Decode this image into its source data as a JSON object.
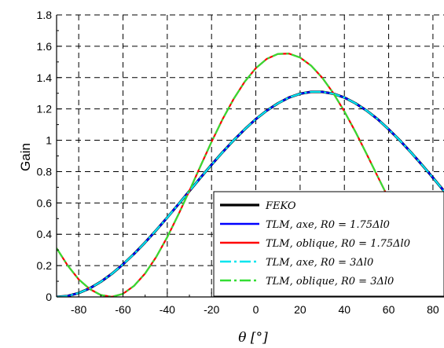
{
  "chart_data": {
    "type": "line",
    "xlabel": "θ  [°]",
    "ylabel": "Gain",
    "xlim": [
      -90,
      85
    ],
    "ylim": [
      0,
      1.8
    ],
    "grid": true,
    "legend_position": "bottom-right",
    "x_ticks": [
      "-80",
      "-60",
      "-40",
      "-20",
      "0",
      "20",
      "40",
      "60",
      "80"
    ],
    "y_ticks": [
      "0",
      "0.2",
      "0.4",
      "0.6",
      "0.8",
      "1",
      "1.2",
      "1.4",
      "1.6",
      "1.8"
    ],
    "x": [
      -90,
      -85,
      -80,
      -75,
      -70,
      -65,
      -60,
      -55,
      -50,
      -45,
      -40,
      -35,
      -30,
      -25,
      -20,
      -15,
      -10,
      -5,
      0,
      5,
      10,
      15,
      20,
      25,
      30,
      35,
      40,
      45,
      50,
      55,
      60,
      65,
      70,
      75,
      80,
      85
    ],
    "series": [
      {
        "name": "FEKO",
        "color": "#000000",
        "style": "solid",
        "values": [
          0.0,
          0.006,
          0.025,
          0.055,
          0.097,
          0.148,
          0.208,
          0.275,
          0.348,
          0.426,
          0.507,
          0.591,
          0.676,
          0.761,
          0.844,
          0.924,
          1.0,
          1.07,
          1.135,
          1.19,
          1.236,
          1.273,
          1.297,
          1.309,
          1.309,
          1.297,
          1.273,
          1.236,
          1.19,
          1.135,
          1.07,
          1.0,
          0.924,
          0.844,
          0.761,
          0.676
        ]
      },
      {
        "name": "TLM, axe, R0 = 1.75Δl0",
        "color": "#0000ff",
        "style": "solid",
        "values": [
          0.0,
          0.006,
          0.025,
          0.055,
          0.097,
          0.148,
          0.208,
          0.275,
          0.348,
          0.426,
          0.507,
          0.591,
          0.676,
          0.761,
          0.844,
          0.924,
          1.0,
          1.07,
          1.135,
          1.19,
          1.236,
          1.273,
          1.297,
          1.309,
          1.309,
          1.297,
          1.273,
          1.236,
          1.19,
          1.135,
          1.07,
          1.0,
          0.924,
          0.844,
          0.761,
          0.676
        ]
      },
      {
        "name": "TLM, oblique, R0 = 1.75Δl0",
        "color": "#ff0000",
        "style": "solid",
        "values": [
          0.311,
          0.201,
          0.112,
          0.05,
          0.012,
          0.001,
          0.02,
          0.071,
          0.15,
          0.255,
          0.382,
          0.525,
          0.678,
          0.835,
          0.99,
          1.135,
          1.264,
          1.374,
          1.46,
          1.52,
          1.551,
          1.553,
          1.528,
          1.476,
          1.399,
          1.301,
          1.184,
          1.054,
          0.914,
          0.77,
          0.628,
          0.494,
          0.372,
          0.269,
          0.189,
          0.135
        ]
      },
      {
        "name": "TLM, axe, R0 = 3Δl0",
        "color": "#00e5ee",
        "style": "dashdot",
        "values": [
          0.0,
          0.006,
          0.025,
          0.055,
          0.097,
          0.148,
          0.208,
          0.275,
          0.348,
          0.426,
          0.507,
          0.591,
          0.676,
          0.761,
          0.844,
          0.924,
          1.0,
          1.07,
          1.135,
          1.19,
          1.236,
          1.273,
          1.297,
          1.309,
          1.309,
          1.297,
          1.273,
          1.236,
          1.19,
          1.135,
          1.07,
          1.0,
          0.924,
          0.844,
          0.761,
          0.676
        ]
      },
      {
        "name": "TLM, oblique, R0 = 3Δl0",
        "color": "#33dd33",
        "style": "dashdot",
        "values": [
          0.311,
          0.201,
          0.112,
          0.05,
          0.012,
          0.001,
          0.02,
          0.071,
          0.15,
          0.255,
          0.382,
          0.525,
          0.678,
          0.835,
          0.99,
          1.135,
          1.264,
          1.374,
          1.46,
          1.52,
          1.551,
          1.553,
          1.528,
          1.476,
          1.399,
          1.301,
          1.184,
          1.054,
          0.914,
          0.77,
          0.628,
          0.494,
          0.372,
          0.269,
          0.189,
          0.135
        ]
      }
    ],
    "legend": [
      {
        "label": "FEKO",
        "color": "#000000",
        "style": "solid"
      },
      {
        "label": "TLM, axe, R0 = 1.75Δl0",
        "color": "#0000ff",
        "style": "solid"
      },
      {
        "label": "TLM, oblique, R0 = 1.75Δl0",
        "color": "#ff0000",
        "style": "solid"
      },
      {
        "label": "TLM, axe, R0 = 3Δl0",
        "color": "#00e5ee",
        "style": "dashdot"
      },
      {
        "label": "TLM, oblique, R0 = 3Δl0",
        "color": "#33dd33",
        "style": "dashdot"
      }
    ]
  }
}
